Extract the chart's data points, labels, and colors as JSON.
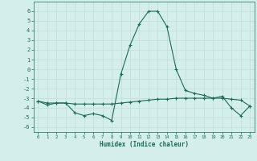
{
  "xlabel": "Humidex (Indice chaleur)",
  "x": [
    0,
    1,
    2,
    3,
    4,
    5,
    6,
    7,
    8,
    9,
    10,
    11,
    12,
    13,
    14,
    15,
    16,
    17,
    18,
    19,
    20,
    21,
    22,
    23
  ],
  "line1_y": [
    -3.3,
    -3.7,
    -3.5,
    -3.5,
    -4.5,
    -4.8,
    -4.6,
    -4.8,
    -5.3,
    -0.5,
    2.5,
    4.7,
    6.0,
    6.0,
    4.4,
    0.0,
    -2.2,
    -2.5,
    -2.7,
    -3.0,
    -2.8,
    -4.0,
    -4.8,
    -3.8
  ],
  "line2_y": [
    -3.3,
    -3.5,
    -3.5,
    -3.5,
    -3.6,
    -3.6,
    -3.6,
    -3.6,
    -3.6,
    -3.5,
    -3.4,
    -3.3,
    -3.2,
    -3.1,
    -3.1,
    -3.0,
    -3.0,
    -3.0,
    -3.0,
    -3.0,
    -3.0,
    -3.1,
    -3.2,
    -3.8
  ],
  "line_color": "#1a6b5a",
  "bg_color": "#d4eeeb",
  "grid_color": "#c0deda",
  "ylim": [
    -6.5,
    7.0
  ],
  "xlim": [
    -0.5,
    23.5
  ],
  "yticks": [
    -6,
    -5,
    -4,
    -3,
    -2,
    -1,
    0,
    1,
    2,
    3,
    4,
    5,
    6
  ],
  "xticks": [
    0,
    1,
    2,
    3,
    4,
    5,
    6,
    7,
    8,
    9,
    10,
    11,
    12,
    13,
    14,
    15,
    16,
    17,
    18,
    19,
    20,
    21,
    22,
    23
  ]
}
